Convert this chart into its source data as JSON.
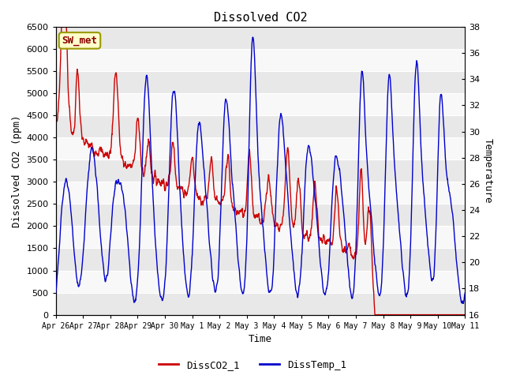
{
  "title": "Dissolved CO2",
  "xlabel": "Time",
  "ylabel_left": "Dissolved CO2 (ppm)",
  "ylabel_right": "Temperature",
  "ylim_left": [
    0,
    6500
  ],
  "ylim_right": [
    16,
    38
  ],
  "yticks_left": [
    0,
    500,
    1000,
    1500,
    2000,
    2500,
    3000,
    3500,
    4000,
    4500,
    5000,
    5500,
    6000,
    6500
  ],
  "yticks_right": [
    16,
    18,
    20,
    22,
    24,
    26,
    28,
    30,
    32,
    34,
    36,
    38
  ],
  "xtick_labels": [
    "Apr 26",
    "Apr 27",
    "Apr 28",
    "Apr 29",
    "Apr 30",
    "May 1",
    "May 2",
    "May 3",
    "May 4",
    "May 5",
    "May 6",
    "May 7",
    "May 8",
    "May 9",
    "May 10",
    "May 11"
  ],
  "legend_label": "SW_met",
  "line1_label": "DissCO2_1",
  "line2_label": "DissTemp_1",
  "line1_color": "#cc0000",
  "line2_color": "#0000cc",
  "band_colors": [
    "#e8e8e8",
    "#f8f8f8"
  ],
  "annotation_bg": "#ffffcc",
  "annotation_border": "#999900",
  "title_fontsize": 11,
  "label_fontsize": 9,
  "tick_fontsize": 8
}
